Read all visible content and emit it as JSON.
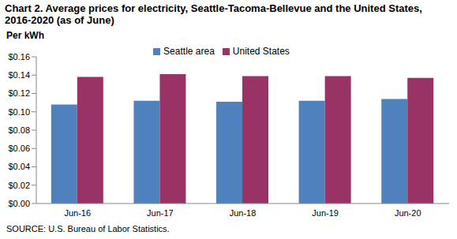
{
  "chart_data": {
    "type": "bar",
    "title": "Chart 2. Average prices for electricity, Seattle-Tacoma-Bellevue and the United States, 2016-2020  (as of June)",
    "y_label": "Per kWh",
    "annotations": [
      "SOURCE: U.S. Bureau of Labor Statistics."
    ],
    "categories": [
      "Jun-16",
      "Jun-17",
      "Jun-18",
      "Jun-19",
      "Jun-20"
    ],
    "series": [
      {
        "name": "Seattle area",
        "color": "#4f81bd",
        "values": [
          0.108,
          0.112,
          0.111,
          0.112,
          0.114
        ]
      },
      {
        "name": "United States",
        "color": "#993366",
        "values": [
          0.138,
          0.141,
          0.139,
          0.139,
          0.137
        ]
      }
    ],
    "ylim": [
      0,
      0.16
    ],
    "yticks": [
      {
        "value": 0,
        "label": "$0.00"
      },
      {
        "value": 0.02,
        "label": "$0.02"
      },
      {
        "value": 0.04,
        "label": "$0.04"
      },
      {
        "value": 0.06,
        "label": "$0.06"
      },
      {
        "value": 0.08,
        "label": "$0.08"
      },
      {
        "value": 0.1,
        "label": "$0.10"
      },
      {
        "value": 0.12,
        "label": "$0.12"
      },
      {
        "value": 0.14,
        "label": "$0.14"
      },
      {
        "value": 0.16,
        "label": "$0.16"
      }
    ],
    "grid": false,
    "legend": "top"
  }
}
